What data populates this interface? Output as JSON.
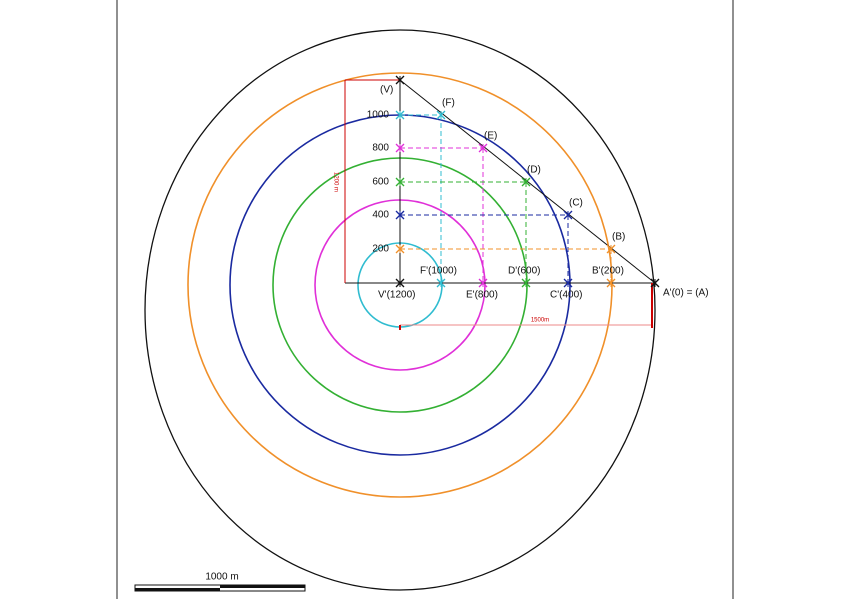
{
  "diagram": {
    "points": [
      "(V)",
      "(F)",
      "(E)",
      "(D)",
      "(C)",
      "(B)"
    ],
    "levels": [
      "1000",
      "800",
      "600",
      "400",
      "200"
    ],
    "base_labels": [
      "V'(1200)",
      "F'(1000)",
      "E'(800)",
      "D'(600)",
      "C'(400)",
      "B'(200)",
      "A'(0) = (A)"
    ],
    "dimension_vertical": "1200 m",
    "dimension_horizontal": "1500m",
    "scale_bar": "1000 m"
  }
}
